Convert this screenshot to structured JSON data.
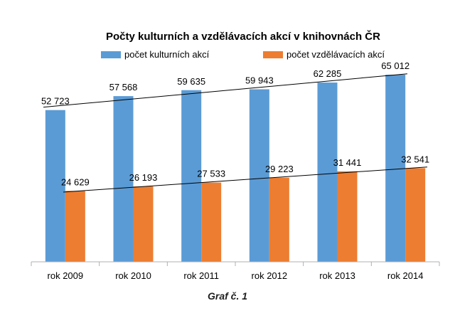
{
  "chart_data": {
    "type": "bar",
    "title": "Počty kulturních a vzdělávacích akcí v knihovnách ČR",
    "categories": [
      "rok 2009",
      "rok 2010",
      "rok 2011",
      "rok 2012",
      "rok 2013",
      "rok 2014"
    ],
    "series": [
      {
        "name": "počet kulturních akcí",
        "color": "#5B9BD5",
        "values": [
          52723,
          57568,
          59635,
          59943,
          62285,
          65012
        ],
        "labels": [
          "52 723",
          "57 568",
          "59 635",
          "59 943",
          "62 285",
          "65 012"
        ]
      },
      {
        "name": "počet vzdělávacích akcí",
        "color": "#ED7D31",
        "values": [
          24629,
          26193,
          27533,
          29223,
          31441,
          32541
        ],
        "labels": [
          "24 629",
          "26 193",
          "27 533",
          "29 223",
          "31 441",
          "32 541"
        ]
      }
    ],
    "trendlines": true,
    "trendline_color": "#000000",
    "ylim": [
      0,
      70000
    ],
    "legend": "top",
    "grid": false
  },
  "caption": "Graf č. 1"
}
